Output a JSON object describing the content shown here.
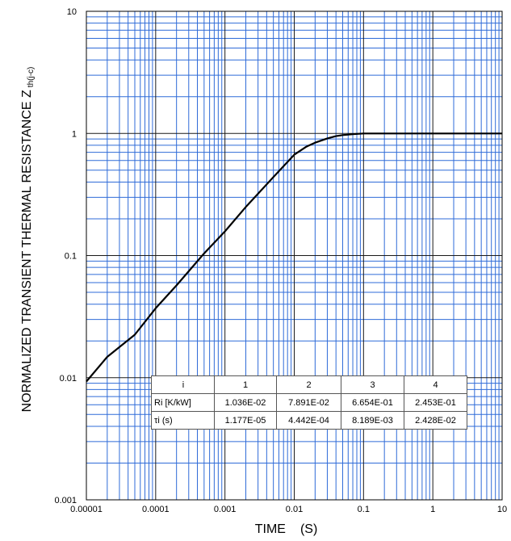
{
  "chart_data": {
    "type": "line",
    "xscale": "log",
    "yscale": "log",
    "xlim": [
      1e-05,
      10
    ],
    "ylim": [
      0.001,
      10
    ],
    "grid": true,
    "xlabel": "TIME",
    "xlabel_unit": "(S)",
    "ylabel": "NORMALIZED TRANSIENT THERMAL RESISTANCE Z",
    "ylabel_sub": "th(j-c)",
    "x_ticks": [
      "0.00001",
      "0.0001",
      "0.001",
      "0.01",
      "0.1",
      "1",
      "10"
    ],
    "y_ticks": [
      "0.001",
      "0.01",
      "0.1",
      "1",
      "10"
    ],
    "series": [
      {
        "x": [
          1e-05,
          2e-05,
          5e-05,
          0.0001,
          0.0002,
          0.0005,
          0.001,
          0.002,
          0.005,
          0.01,
          0.015,
          0.02,
          0.03,
          0.04,
          0.05,
          0.07,
          0.1,
          0.2,
          0.5,
          1,
          2,
          5,
          10
        ],
        "values": [
          0.0093,
          0.0148,
          0.0225,
          0.037,
          0.057,
          0.104,
          0.158,
          0.25,
          0.44,
          0.67,
          0.78,
          0.84,
          0.91,
          0.95,
          0.97,
          0.985,
          1.0,
          1.0,
          1.0,
          1.0,
          1.0,
          1.0,
          1.0
        ],
        "color": "#000000"
      }
    ],
    "table": {
      "header": [
        "i",
        "1",
        "2",
        "3",
        "4"
      ],
      "rows": [
        [
          "Ri [K/kW]",
          "1.036E-02",
          "7.891E-02",
          "6.654E-01",
          "2.453E-01"
        ],
        [
          "τi (s)",
          "1.177E-05",
          "4.442E-04",
          "8.189E-03",
          "2.428E-02"
        ]
      ]
    },
    "grid_color": "#2f6bd8",
    "major_grid_color": "#1a1a1a",
    "line_color": "#000000"
  }
}
